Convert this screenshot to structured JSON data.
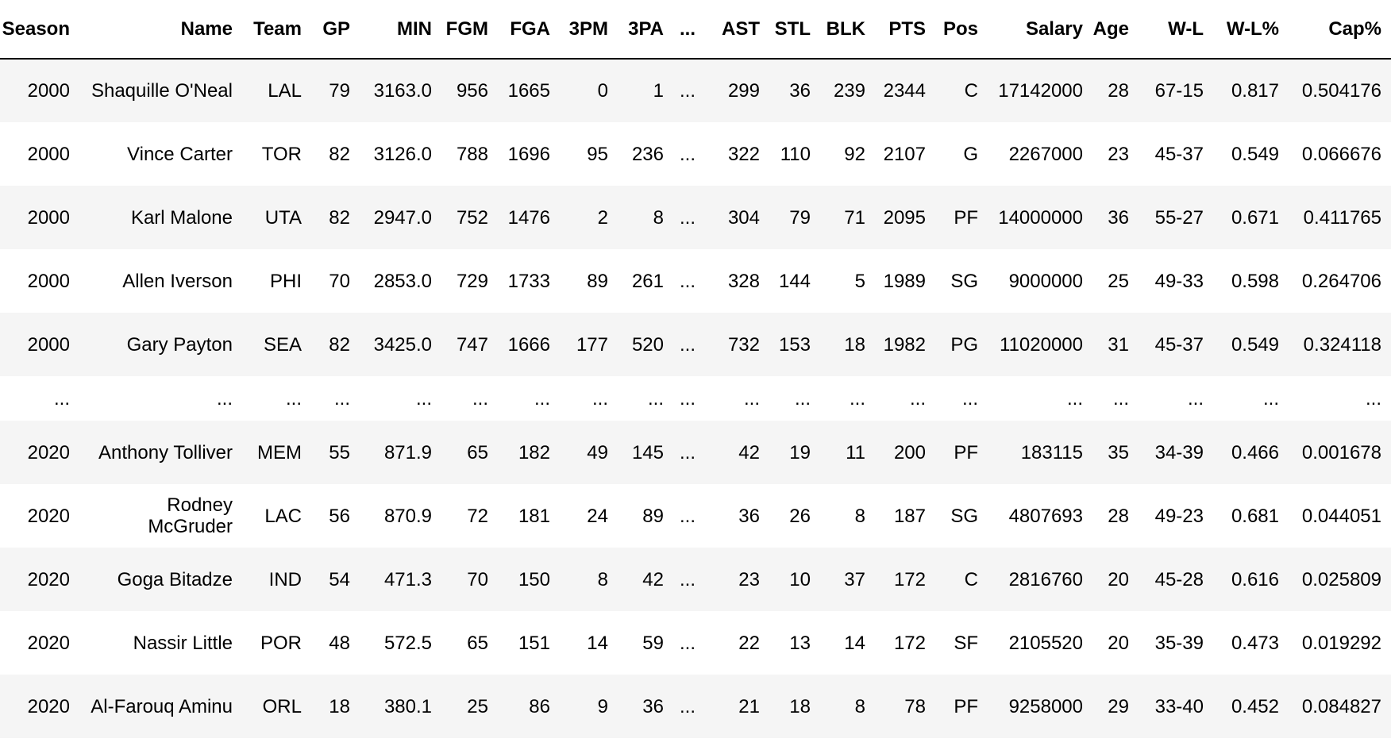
{
  "columns": [
    "Season",
    "Name",
    "Team",
    "GP",
    "MIN",
    "FGM",
    "FGA",
    "3PM",
    "3PA",
    "...",
    "AST",
    "STL",
    "BLK",
    "PTS",
    "Pos",
    "Salary",
    "Age",
    "W-L",
    "W-L%",
    "Cap%"
  ],
  "rows": [
    [
      "2000",
      "Shaquille O'Neal",
      "LAL",
      "79",
      "3163.0",
      "956",
      "1665",
      "0",
      "1",
      "...",
      "299",
      "36",
      "239",
      "2344",
      "C",
      "17142000",
      "28",
      "67-15",
      "0.817",
      "0.504176"
    ],
    [
      "2000",
      "Vince Carter",
      "TOR",
      "82",
      "3126.0",
      "788",
      "1696",
      "95",
      "236",
      "...",
      "322",
      "110",
      "92",
      "2107",
      "G",
      "2267000",
      "23",
      "45-37",
      "0.549",
      "0.066676"
    ],
    [
      "2000",
      "Karl Malone",
      "UTA",
      "82",
      "2947.0",
      "752",
      "1476",
      "2",
      "8",
      "...",
      "304",
      "79",
      "71",
      "2095",
      "PF",
      "14000000",
      "36",
      "55-27",
      "0.671",
      "0.411765"
    ],
    [
      "2000",
      "Allen Iverson",
      "PHI",
      "70",
      "2853.0",
      "729",
      "1733",
      "89",
      "261",
      "...",
      "328",
      "144",
      "5",
      "1989",
      "SG",
      "9000000",
      "25",
      "49-33",
      "0.598",
      "0.264706"
    ],
    [
      "2000",
      "Gary Payton",
      "SEA",
      "82",
      "3425.0",
      "747",
      "1666",
      "177",
      "520",
      "...",
      "732",
      "153",
      "18",
      "1982",
      "PG",
      "11020000",
      "31",
      "45-37",
      "0.549",
      "0.324118"
    ],
    [
      "...",
      "...",
      "...",
      "...",
      "...",
      "...",
      "...",
      "...",
      "...",
      "...",
      "...",
      "...",
      "...",
      "...",
      "...",
      "...",
      "...",
      "...",
      "...",
      "..."
    ],
    [
      "2020",
      "Anthony Tolliver",
      "MEM",
      "55",
      "871.9",
      "65",
      "182",
      "49",
      "145",
      "...",
      "42",
      "19",
      "11",
      "200",
      "PF",
      "183115",
      "35",
      "34-39",
      "0.466",
      "0.001678"
    ],
    [
      "2020",
      "Rodney McGruder",
      "LAC",
      "56",
      "870.9",
      "72",
      "181",
      "24",
      "89",
      "...",
      "36",
      "26",
      "8",
      "187",
      "SG",
      "4807693",
      "28",
      "49-23",
      "0.681",
      "0.044051"
    ],
    [
      "2020",
      "Goga Bitadze",
      "IND",
      "54",
      "471.3",
      "70",
      "150",
      "8",
      "42",
      "...",
      "23",
      "10",
      "37",
      "172",
      "C",
      "2816760",
      "20",
      "45-28",
      "0.616",
      "0.025809"
    ],
    [
      "2020",
      "Nassir Little",
      "POR",
      "48",
      "572.5",
      "65",
      "151",
      "14",
      "59",
      "...",
      "22",
      "13",
      "14",
      "172",
      "SF",
      "2105520",
      "20",
      "35-39",
      "0.473",
      "0.019292"
    ],
    [
      "2020",
      "Al-Farouq Aminu",
      "ORL",
      "18",
      "380.1",
      "25",
      "86",
      "9",
      "36",
      "...",
      "21",
      "18",
      "8",
      "78",
      "PF",
      "9258000",
      "29",
      "33-40",
      "0.452",
      "0.084827"
    ]
  ]
}
